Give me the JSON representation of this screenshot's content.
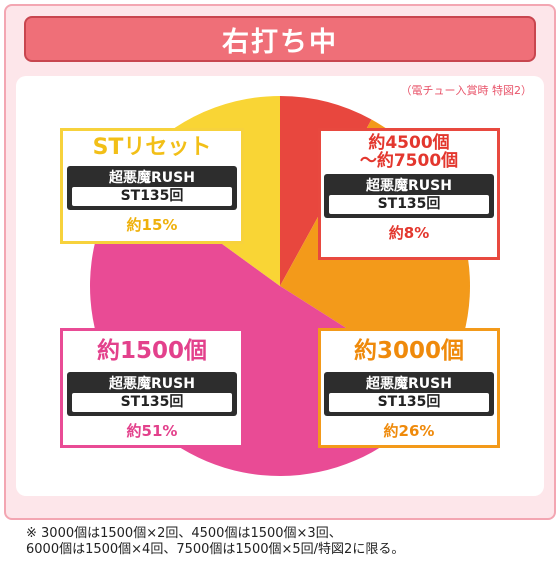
{
  "title": "右打ち中",
  "note": "（電チュー入賞時 特図2）",
  "colors": {
    "yellow": "#f9d535",
    "red": "#e8473e",
    "orange": "#f39a1a",
    "pink": "#e94b95"
  },
  "chart_data": {
    "type": "pie",
    "slices": [
      {
        "label": "約4500個～約7500個",
        "value": 8,
        "percent_label": "約8%",
        "color": "#e8473e"
      },
      {
        "label": "約3000個",
        "value": 26,
        "percent_label": "約26%",
        "color": "#f39a1a"
      },
      {
        "label": "約1500個",
        "value": 51,
        "percent_label": "約51%",
        "color": "#e94b95"
      },
      {
        "label": "STリセット",
        "value": 15,
        "percent_label": "約15%",
        "color": "#f9d535"
      }
    ]
  },
  "boxes": {
    "top_left": {
      "head": "STリセット",
      "rush_name": "超悪魔RUSH",
      "rush_st": "ST135回",
      "pct": "約15%"
    },
    "top_right": {
      "head1": "約4500個",
      "head2": "～約7500個",
      "rush_name": "超悪魔RUSH",
      "rush_st": "ST135回",
      "pct": "約8%"
    },
    "bottom_left": {
      "head": "約1500個",
      "rush_name": "超悪魔RUSH",
      "rush_st": "ST135回",
      "pct": "約51%"
    },
    "bottom_right": {
      "head": "約3000個",
      "rush_name": "超悪魔RUSH",
      "rush_st": "ST135回",
      "pct": "約26%"
    }
  },
  "footnote": {
    "line1": "※ 3000個は1500個×2回、4500個は1500個×3回、",
    "line2": "6000個は1500個×4回、7500個は1500個×5回/特図2に限る。"
  }
}
